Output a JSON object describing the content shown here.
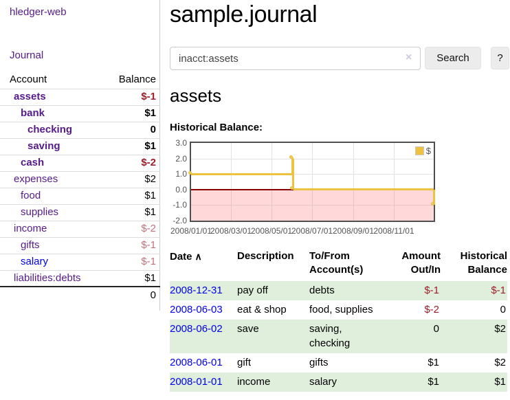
{
  "app": {
    "brand": "hledger-web",
    "nav_journal": "Journal"
  },
  "sidebar": {
    "header": {
      "account": "Account",
      "balance": "Balance"
    },
    "accounts": [
      {
        "name": "assets",
        "balance": "$-1",
        "indent": 1,
        "bold": true,
        "neg": "strong"
      },
      {
        "name": "bank",
        "balance": "$1",
        "indent": 2,
        "bold": true,
        "neg": ""
      },
      {
        "name": "checking",
        "balance": "0",
        "indent": 3,
        "bold": true,
        "neg": ""
      },
      {
        "name": "saving",
        "balance": "$1",
        "indent": 3,
        "bold": true,
        "neg": ""
      },
      {
        "name": "cash",
        "balance": "$-2",
        "indent": 2,
        "bold": true,
        "neg": "strong"
      },
      {
        "name": "expenses",
        "balance": "$2",
        "indent": 1,
        "bold": false,
        "neg": ""
      },
      {
        "name": "food",
        "balance": "$1",
        "indent": 2,
        "bold": false,
        "neg": ""
      },
      {
        "name": "supplies",
        "balance": "$1",
        "indent": 2,
        "bold": false,
        "neg": ""
      },
      {
        "name": "income",
        "balance": "$-2",
        "indent": 1,
        "bold": false,
        "neg": "soft"
      },
      {
        "name": "gifts",
        "balance": "$-1",
        "indent": 2,
        "bold": false,
        "neg": "soft"
      },
      {
        "name": "salary",
        "balance": "$-1",
        "indent": 2,
        "bold": false,
        "neg": "soft",
        "unvisited": true
      },
      {
        "name": "liabilities:debts",
        "balance": "$1",
        "indent": 1,
        "bold": false,
        "neg": ""
      }
    ],
    "total": "0"
  },
  "header": {
    "title": "sample.journal"
  },
  "search": {
    "value": "inacct:assets",
    "clear_icon": "×",
    "button_label": "Search",
    "help_label": "?"
  },
  "account_page": {
    "heading": "assets",
    "chart_label": "Historical Balance:"
  },
  "chart_data": {
    "type": "line",
    "title": "Historical Balance",
    "step": true,
    "series": [
      {
        "name": "$",
        "color": "#edc240",
        "points": [
          [
            "2008-01-01",
            1
          ],
          [
            "2008-06-01",
            2
          ],
          [
            "2008-06-02",
            2
          ],
          [
            "2008-06-03",
            0
          ],
          [
            "2008-12-31",
            -1
          ]
        ]
      }
    ],
    "ylim": [
      -2,
      3
    ],
    "yticks": [
      3.0,
      2.0,
      1.0,
      0.0,
      -1.0,
      -2.0
    ],
    "xticks": [
      "2008/01/01",
      "2008/03/01",
      "2008/05/01",
      "2008/07/01",
      "2008/09/01",
      "2008/11/01"
    ],
    "xrange": [
      "2008-01-01",
      "2008-12-31"
    ],
    "legend_position": "top-right",
    "grid": true,
    "negative_region_color": "rgba(255,120,120,0.28)",
    "zero_line_color": "#8b0000"
  },
  "register": {
    "columns": [
      "Date",
      "Description",
      "To/From Account(s)",
      "Amount Out/In",
      "Historical Balance"
    ],
    "sort_icon": "∧",
    "rows": [
      {
        "date": "2008-12-31",
        "description": "pay off",
        "accounts": "debts",
        "amount": "$-1",
        "amount_neg": true,
        "balance": "$-1",
        "balance_neg": true,
        "highlight": true
      },
      {
        "date": "2008-06-03",
        "description": "eat & shop",
        "accounts": "food, supplies",
        "amount": "$-2",
        "amount_neg": true,
        "balance": "0",
        "balance_neg": false,
        "highlight": false
      },
      {
        "date": "2008-06-02",
        "description": "save",
        "accounts": "saving, checking",
        "amount": "0",
        "amount_neg": false,
        "balance": "$2",
        "balance_neg": false,
        "highlight": true
      },
      {
        "date": "2008-06-01",
        "description": "gift",
        "accounts": "gifts",
        "amount": "$1",
        "amount_neg": false,
        "balance": "$2",
        "balance_neg": false,
        "highlight": false
      },
      {
        "date": "2008-01-01",
        "description": "income",
        "accounts": "salary",
        "amount": "$1",
        "amount_neg": false,
        "balance": "$1",
        "balance_neg": false,
        "highlight": true
      }
    ]
  }
}
